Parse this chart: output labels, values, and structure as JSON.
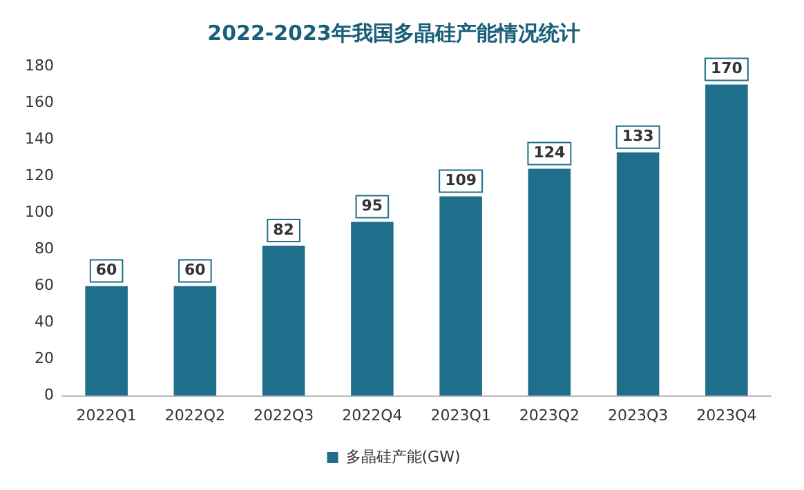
{
  "chart_data": {
    "type": "bar",
    "title": "2022-2023年我国多晶硅产能情况统计",
    "categories": [
      "2022Q1",
      "2022Q2",
      "2022Q3",
      "2022Q4",
      "2023Q1",
      "2023Q2",
      "2023Q3",
      "2023Q4"
    ],
    "series": [
      {
        "name": "多晶硅产能(GW)",
        "color": "#1f6e8c",
        "values": [
          60,
          60,
          82,
          95,
          109,
          124,
          133,
          170
        ]
      }
    ],
    "ylim": [
      0,
      180
    ],
    "yticks": [
      0,
      20,
      40,
      60,
      80,
      100,
      120,
      140,
      160,
      180
    ],
    "grid": false,
    "legend": "bottom",
    "data_labels": true
  }
}
